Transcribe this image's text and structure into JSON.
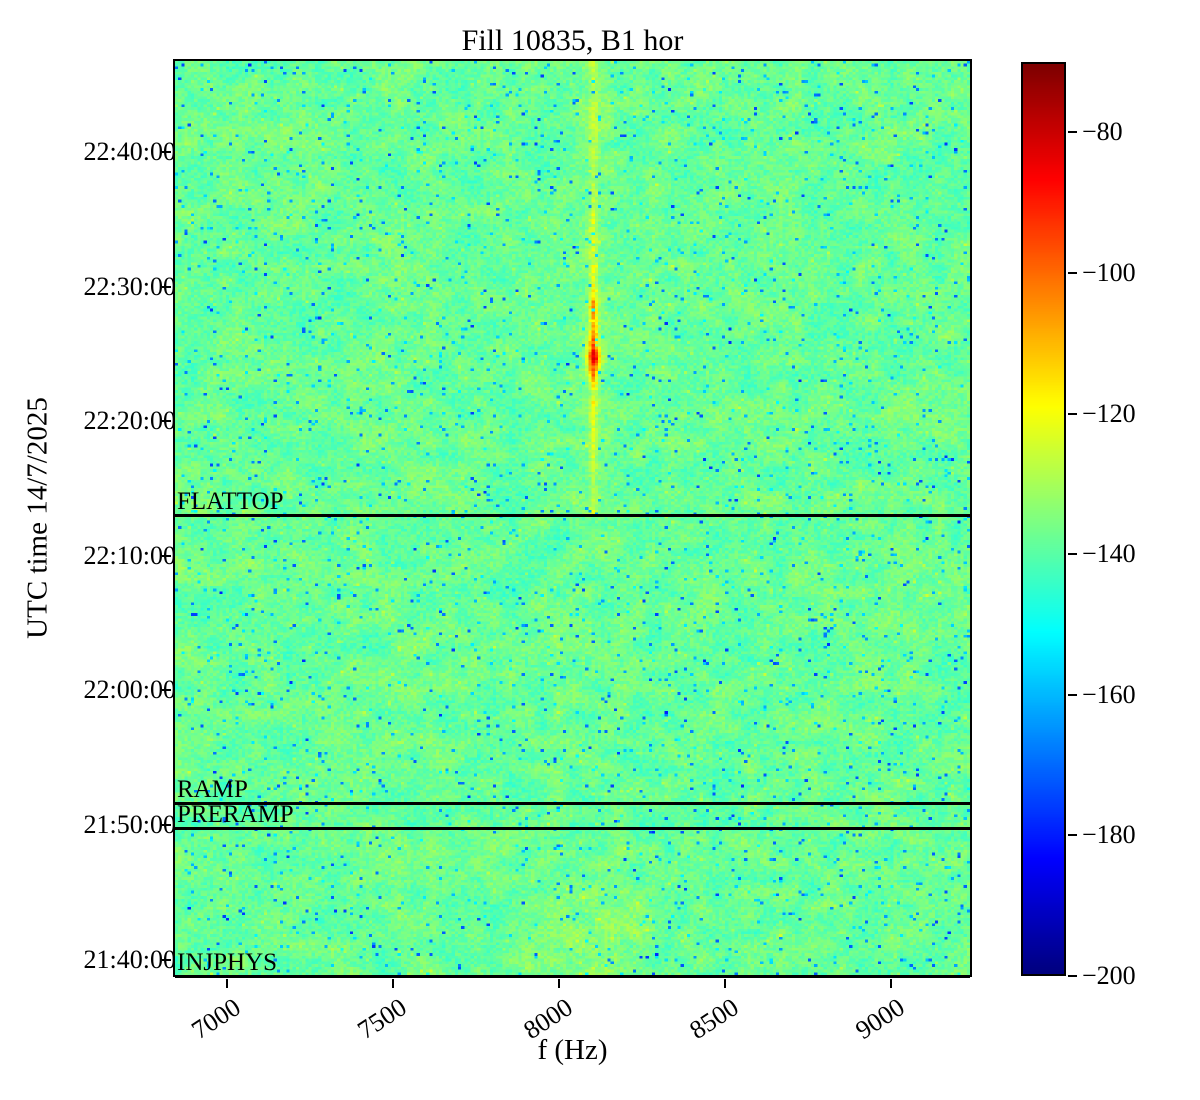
{
  "figure": {
    "title": "Fill 10835, B1 hor"
  },
  "axes": {
    "xlabel": "f (Hz)",
    "ylabel": "UTC time 14/7/2025",
    "x_range_hz": [
      6837,
      9245
    ],
    "x_ticks": [
      {
        "label": "7000",
        "value": 7000
      },
      {
        "label": "7500",
        "value": 7500
      },
      {
        "label": "8000",
        "value": 8000
      },
      {
        "label": "8500",
        "value": 8500
      },
      {
        "label": "9000",
        "value": 9000
      }
    ],
    "y_time_top": "22:46:55",
    "y_time_bottom": "21:38:42",
    "y_ticks": [
      {
        "label": "22:40:00",
        "time": "22:40:00"
      },
      {
        "label": "22:30:00",
        "time": "22:30:00"
      },
      {
        "label": "22:20:00",
        "time": "22:20:00"
      },
      {
        "label": "22:10:00",
        "time": "22:10:00"
      },
      {
        "label": "22:00:00",
        "time": "22:00:00"
      },
      {
        "label": "21:50:00",
        "time": "21:50:00"
      },
      {
        "label": "21:40:00",
        "time": "21:40:00"
      }
    ]
  },
  "colorbar": {
    "colormap": "jet",
    "clim_db": [
      -200,
      -70
    ],
    "ticks": [
      {
        "label": "−80",
        "value": -80
      },
      {
        "label": "−100",
        "value": -100
      },
      {
        "label": "−120",
        "value": -120
      },
      {
        "label": "−140",
        "value": -140
      },
      {
        "label": "−160",
        "value": -160
      },
      {
        "label": "−180",
        "value": -180
      },
      {
        "label": "−200",
        "value": -200
      }
    ]
  },
  "beam_modes": [
    {
      "label": "FLATTOP",
      "time": "22:13:11"
    },
    {
      "label": "RAMP",
      "time": "21:51:46"
    },
    {
      "label": "PRERAMP",
      "time": "21:49:55"
    },
    {
      "label": "INJPHYS",
      "time": "21:38:42"
    }
  ],
  "chart_data": {
    "type": "heatmap",
    "subtype": "spectrogram",
    "title": "Fill 10835, B1 hor",
    "xlabel": "f (Hz)",
    "ylabel": "UTC time 14/7/2025",
    "date": "14/7/2025",
    "x_range_hz": [
      6837,
      9245
    ],
    "x_tick_values_hz": [
      7000,
      7500,
      8000,
      8500,
      9000
    ],
    "time_start": "21:38:42",
    "time_end": "22:46:55",
    "y_tick_times": [
      "21:40:00",
      "21:50:00",
      "22:00:00",
      "22:10:00",
      "22:20:00",
      "22:30:00",
      "22:40:00"
    ],
    "colormap": "jet",
    "colorbar_range_db": [
      -200,
      -70
    ],
    "colorbar_tick_values_db": [
      -80,
      -100,
      -120,
      -140,
      -160,
      -180,
      -200
    ],
    "noise_floor_db": -140,
    "noise_spread_db": 8,
    "beam_mode_markers": [
      {
        "label": "INJPHYS",
        "time": "21:38:42"
      },
      {
        "label": "PRERAMP",
        "time": "21:49:55"
      },
      {
        "label": "RAMP",
        "time": "21:51:46"
      },
      {
        "label": "FLATTOP",
        "time": "22:13:11"
      }
    ],
    "features": [
      {
        "name": "narrowband-line",
        "freq_hz": 8100,
        "time_from": "22:13:11",
        "time_to": "22:46:55",
        "typical_level_db": -125,
        "burst": {
          "time": "22:24:50",
          "peak_level_db": -85,
          "freq_hz": 8100
        }
      },
      {
        "name": "broadband-hump",
        "freq_center_hz": 8080,
        "freq_sigma_hz": 110,
        "time_from": "21:38:42",
        "time_to": "21:49:55",
        "level_above_floor_db": 6
      }
    ]
  }
}
